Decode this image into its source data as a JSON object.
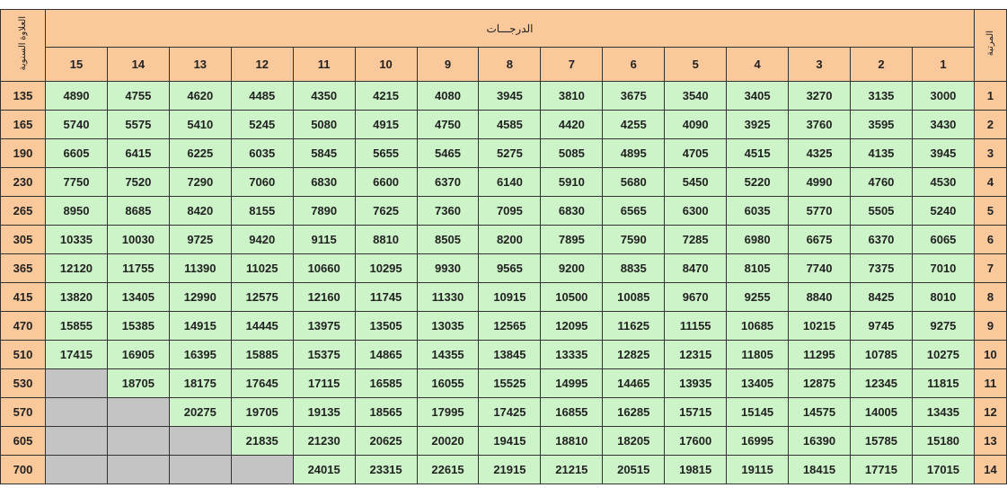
{
  "headers": {
    "increment_label": "العلاوة السنوية",
    "grades_label": "الدرجـــات",
    "rank_label": "المرتبة",
    "grade_numbers": [
      "15",
      "14",
      "13",
      "12",
      "11",
      "10",
      "9",
      "8",
      "7",
      "6",
      "5",
      "4",
      "3",
      "2",
      "1"
    ]
  },
  "colors": {
    "header": "#f9c89b",
    "cell": "#cdf3c8",
    "empty": "#c4c4c4"
  },
  "rows": [
    {
      "increment": "135",
      "rank": "1",
      "values": [
        "4890",
        "4755",
        "4620",
        "4485",
        "4350",
        "4215",
        "4080",
        "3945",
        "3810",
        "3675",
        "3540",
        "3405",
        "3270",
        "3135",
        "3000"
      ]
    },
    {
      "increment": "165",
      "rank": "2",
      "values": [
        "5740",
        "5575",
        "5410",
        "5245",
        "5080",
        "4915",
        "4750",
        "4585",
        "4420",
        "4255",
        "4090",
        "3925",
        "3760",
        "3595",
        "3430"
      ]
    },
    {
      "increment": "190",
      "rank": "3",
      "values": [
        "6605",
        "6415",
        "6225",
        "6035",
        "5845",
        "5655",
        "5465",
        "5275",
        "5085",
        "4895",
        "4705",
        "4515",
        "4325",
        "4135",
        "3945"
      ]
    },
    {
      "increment": "230",
      "rank": "4",
      "values": [
        "7750",
        "7520",
        "7290",
        "7060",
        "6830",
        "6600",
        "6370",
        "6140",
        "5910",
        "5680",
        "5450",
        "5220",
        "4990",
        "4760",
        "4530"
      ]
    },
    {
      "increment": "265",
      "rank": "5",
      "values": [
        "8950",
        "8685",
        "8420",
        "8155",
        "7890",
        "7625",
        "7360",
        "7095",
        "6830",
        "6565",
        "6300",
        "6035",
        "5770",
        "5505",
        "5240"
      ]
    },
    {
      "increment": "305",
      "rank": "6",
      "values": [
        "10335",
        "10030",
        "9725",
        "9420",
        "9115",
        "8810",
        "8505",
        "8200",
        "7895",
        "7590",
        "7285",
        "6980",
        "6675",
        "6370",
        "6065"
      ]
    },
    {
      "increment": "365",
      "rank": "7",
      "values": [
        "12120",
        "11755",
        "11390",
        "11025",
        "10660",
        "10295",
        "9930",
        "9565",
        "9200",
        "8835",
        "8470",
        "8105",
        "7740",
        "7375",
        "7010"
      ]
    },
    {
      "increment": "415",
      "rank": "8",
      "values": [
        "13820",
        "13405",
        "12990",
        "12575",
        "12160",
        "11745",
        "11330",
        "10915",
        "10500",
        "10085",
        "9670",
        "9255",
        "8840",
        "8425",
        "8010"
      ]
    },
    {
      "increment": "470",
      "rank": "9",
      "values": [
        "15855",
        "15385",
        "14915",
        "14445",
        "13975",
        "13505",
        "13035",
        "12565",
        "12095",
        "11625",
        "11155",
        "10685",
        "10215",
        "9745",
        "9275"
      ]
    },
    {
      "increment": "510",
      "rank": "10",
      "values": [
        "17415",
        "16905",
        "16395",
        "15885",
        "15375",
        "14865",
        "14355",
        "13845",
        "13335",
        "12825",
        "12315",
        "11805",
        "11295",
        "10785",
        "10275"
      ]
    },
    {
      "increment": "530",
      "rank": "11",
      "values": [
        null,
        "18705",
        "18175",
        "17645",
        "17115",
        "16585",
        "16055",
        "15525",
        "14995",
        "14465",
        "13935",
        "13405",
        "12875",
        "12345",
        "11815"
      ]
    },
    {
      "increment": "570",
      "rank": "12",
      "values": [
        null,
        null,
        "20275",
        "19705",
        "19135",
        "18565",
        "17995",
        "17425",
        "16855",
        "16285",
        "15715",
        "15145",
        "14575",
        "14005",
        "13435"
      ]
    },
    {
      "increment": "605",
      "rank": "13",
      "values": [
        null,
        null,
        null,
        "21835",
        "21230",
        "20625",
        "20020",
        "19415",
        "18810",
        "18205",
        "17600",
        "16995",
        "16390",
        "15785",
        "15180"
      ]
    },
    {
      "increment": "700",
      "rank": "14",
      "values": [
        null,
        null,
        null,
        null,
        "24015",
        "23315",
        "22615",
        "21915",
        "21215",
        "20515",
        "19815",
        "19115",
        "18415",
        "17715",
        "17015"
      ]
    }
  ]
}
